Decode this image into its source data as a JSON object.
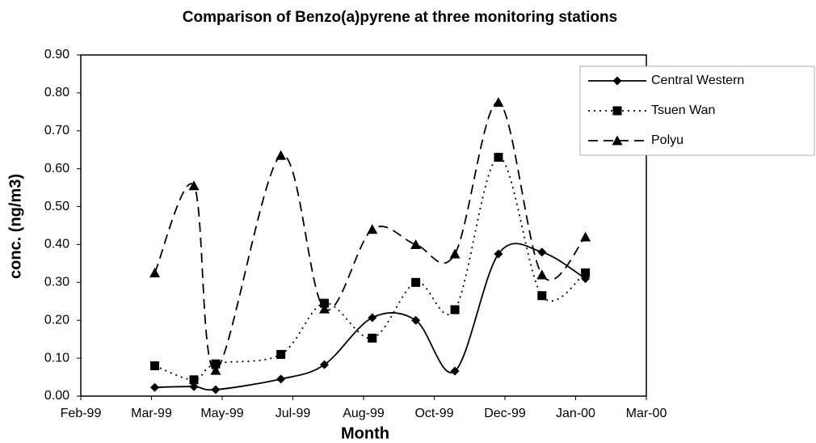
{
  "chart_data": {
    "type": "line",
    "title": "Comparison of Benzo(a)pyrene at three monitoring stations",
    "xlabel": "Month",
    "ylabel": "conc. (ng/m3)",
    "x": [
      1.7,
      2.6,
      3.1,
      4.6,
      5.6,
      6.7,
      7.7,
      8.6,
      9.6,
      10.6,
      11.6
    ],
    "xlim": [
      0,
      13
    ],
    "xticks": [
      {
        "value": 0,
        "label": "Feb-99"
      },
      {
        "value": 1.625,
        "label": "Mar-99"
      },
      {
        "value": 3.25,
        "label": "May-99"
      },
      {
        "value": 4.875,
        "label": "Jul-99"
      },
      {
        "value": 6.5,
        "label": "Aug-99"
      },
      {
        "value": 8.125,
        "label": "Oct-99"
      },
      {
        "value": 9.75,
        "label": "Dec-99"
      },
      {
        "value": 11.375,
        "label": "Jan-00"
      },
      {
        "value": 13,
        "label": "Mar-00"
      }
    ],
    "ylim": [
      0,
      0.9
    ],
    "yticks": [
      {
        "value": 0,
        "label": "0.00"
      },
      {
        "value": 0.1,
        "label": "0.10"
      },
      {
        "value": 0.2,
        "label": "0.20"
      },
      {
        "value": 0.3,
        "label": "0.30"
      },
      {
        "value": 0.4,
        "label": "0.40"
      },
      {
        "value": 0.5,
        "label": "0.50"
      },
      {
        "value": 0.6,
        "label": "0.60"
      },
      {
        "value": 0.7,
        "label": "0.70"
      },
      {
        "value": 0.8,
        "label": "0.80"
      },
      {
        "value": 0.9,
        "label": "0.90"
      }
    ],
    "grid": false,
    "smooth": true,
    "legend": "top-right",
    "series": [
      {
        "name": "Central Western",
        "color": "#000000",
        "dash": "solid",
        "marker": "diamond",
        "values": [
          0.023,
          0.025,
          0.017,
          0.045,
          0.083,
          0.207,
          0.2,
          0.066,
          0.375,
          0.38,
          0.31
        ]
      },
      {
        "name": "Tsuen Wan",
        "color": "#000000",
        "dash": "dotted",
        "marker": "square",
        "values": [
          0.08,
          0.043,
          0.085,
          0.11,
          0.245,
          0.153,
          0.3,
          0.228,
          0.63,
          0.265,
          0.325
        ]
      },
      {
        "name": "Polyu",
        "color": "#000000",
        "dash": "dashed",
        "marker": "triangle",
        "values": [
          0.325,
          0.555,
          0.068,
          0.635,
          0.23,
          0.44,
          0.4,
          0.375,
          0.775,
          0.32,
          0.42
        ]
      }
    ]
  }
}
